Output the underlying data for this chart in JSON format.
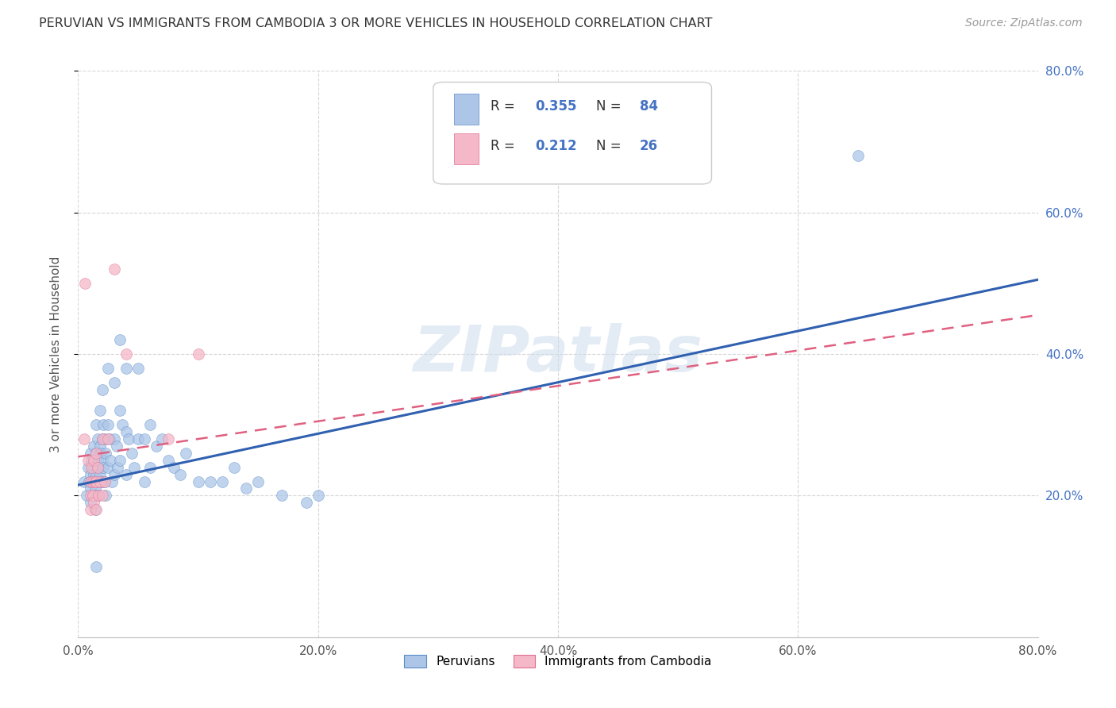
{
  "title": "PERUVIAN VS IMMIGRANTS FROM CAMBODIA 3 OR MORE VEHICLES IN HOUSEHOLD CORRELATION CHART",
  "source": "Source: ZipAtlas.com",
  "ylabel": "3 or more Vehicles in Household",
  "xlim": [
    0.0,
    0.8
  ],
  "ylim": [
    0.0,
    0.8
  ],
  "xtick_labels": [
    "0.0%",
    "20.0%",
    "40.0%",
    "60.0%",
    "80.0%"
  ],
  "xtick_vals": [
    0.0,
    0.2,
    0.4,
    0.6,
    0.8
  ],
  "right_ytick_labels": [
    "20.0%",
    "40.0%",
    "60.0%",
    "80.0%"
  ],
  "right_ytick_vals": [
    0.2,
    0.4,
    0.6,
    0.8
  ],
  "peruvians_R": 0.355,
  "peruvians_N": 84,
  "cambodia_R": 0.212,
  "cambodia_N": 26,
  "peruvian_color": "#adc6e8",
  "peruvian_edge": "#5b8cc8",
  "cambodia_color": "#f4b8c8",
  "cambodia_edge": "#e07090",
  "peruvian_line_color": "#3060b0",
  "cambodia_line_color": "#e06080",
  "legend_label_1": "Peruvians",
  "legend_label_2": "Immigrants from Cambodia",
  "watermark": "ZIPatlas",
  "peru_line_x0": 0.0,
  "peru_line_x1": 0.8,
  "peru_line_y0": 0.215,
  "peru_line_y1": 0.505,
  "camb_line_x0": 0.0,
  "camb_line_x1": 0.8,
  "camb_line_y0": 0.255,
  "camb_line_y1": 0.455
}
